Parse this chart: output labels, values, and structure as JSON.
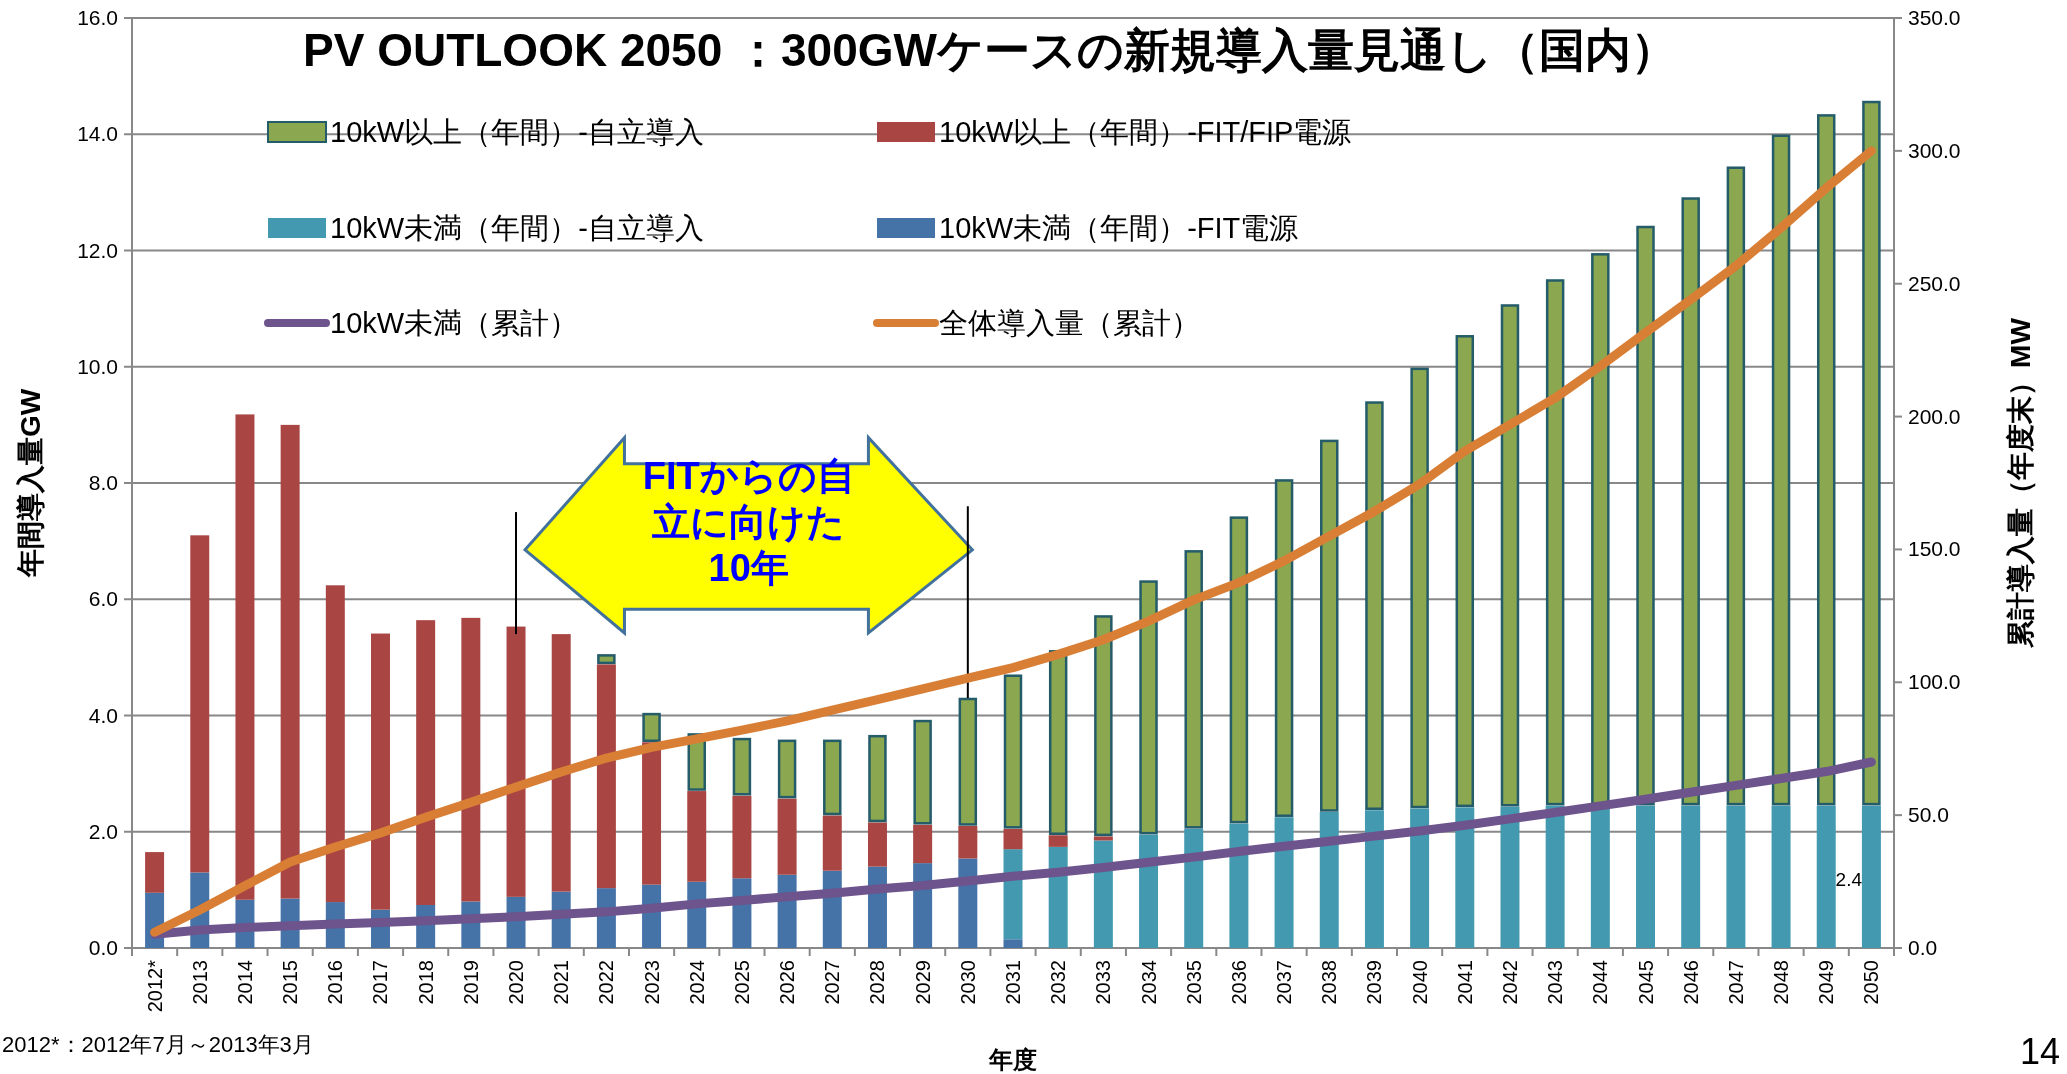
{
  "chart_data": {
    "type": "bar",
    "stacked": true,
    "title": "PV OUTLOOK 2050 ：300GWケースの新規導入量見通し（国内）",
    "xlabel": "年度",
    "ylabel": "年間導入量GW",
    "y2label": "累計導入量（年度末）MW",
    "categories": [
      "2012*",
      "2013",
      "2014",
      "2015",
      "2016",
      "2017",
      "2018",
      "2019",
      "2020",
      "2021",
      "2022",
      "2023",
      "2024",
      "2025",
      "2026",
      "2027",
      "2028",
      "2029",
      "2030",
      "2031",
      "2032",
      "2033",
      "2034",
      "2035",
      "2036",
      "2037",
      "2038",
      "2039",
      "2040",
      "2041",
      "2042",
      "2043",
      "2044",
      "2045",
      "2046",
      "2047",
      "2048",
      "2049",
      "2050"
    ],
    "series": [
      {
        "name": "10kW未満（年間）-FIT電源",
        "color": "#4572a7",
        "values": [
          0.95,
          1.3,
          0.83,
          0.85,
          0.79,
          0.66,
          0.74,
          0.8,
          0.88,
          0.97,
          1.03,
          1.09,
          1.14,
          1.2,
          1.26,
          1.33,
          1.4,
          1.46,
          1.54,
          0.15,
          null,
          null,
          null,
          null,
          null,
          null,
          null,
          null,
          null,
          null,
          null,
          null,
          null,
          null,
          null,
          null,
          null,
          null,
          null
        ]
      },
      {
        "name": "10kW未満（年間）-自立導入",
        "color": "#4299b0",
        "values": [
          null,
          null,
          null,
          null,
          null,
          null,
          null,
          null,
          null,
          null,
          null,
          null,
          null,
          null,
          null,
          null,
          null,
          null,
          null,
          1.55,
          1.74,
          1.85,
          1.95,
          2.05,
          2.14,
          2.25,
          2.34,
          2.37,
          2.4,
          2.42,
          2.43,
          2.45,
          2.45,
          2.45,
          2.45,
          2.45,
          2.45,
          2.45,
          2.45
        ]
      },
      {
        "name": "10kW以上（年間）-FIT/FIP電源",
        "color": "#a94543",
        "values": [
          0.7,
          5.8,
          8.35,
          8.15,
          5.45,
          4.75,
          4.9,
          4.88,
          4.65,
          4.43,
          3.85,
          2.45,
          1.56,
          1.42,
          1.31,
          0.95,
          0.76,
          0.66,
          0.56,
          0.35,
          0.2,
          0.07,
          null,
          null,
          null,
          null,
          null,
          null,
          null,
          null,
          null,
          null,
          null,
          null,
          null,
          null,
          null,
          null,
          null
        ]
      },
      {
        "name": "10kW以上（年間）-自立導入",
        "color": "#8ba74f",
        "values": [
          null,
          null,
          null,
          null,
          null,
          null,
          null,
          null,
          null,
          null,
          0.18,
          0.51,
          1.0,
          1.0,
          1.02,
          1.31,
          1.51,
          1.81,
          2.21,
          2.66,
          3.19,
          3.81,
          4.38,
          4.8,
          5.29,
          5.82,
          6.41,
          7.04,
          7.59,
          8.13,
          8.65,
          9.06,
          9.51,
          9.98,
          10.47,
          11.0,
          11.55,
          11.9,
          12.13
        ]
      },
      {
        "name": "10kW未満（累計）",
        "type": "line",
        "axis": "y2",
        "color": "#6e548d",
        "values": [
          5.2,
          6.8,
          7.7,
          8.4,
          9.0,
          9.6,
          10.3,
          11.0,
          11.8,
          12.7,
          13.6,
          15.0,
          16.6,
          17.9,
          19.3,
          20.6,
          22.2,
          23.5,
          25.2,
          27.0,
          28.5,
          30.3,
          32.3,
          34.2,
          36.3,
          38.3,
          40.2,
          42.1,
          44.0,
          46.2,
          48.6,
          51.0,
          53.5,
          56.0,
          58.6,
          61.2,
          63.8,
          66.4,
          70.0
        ]
      },
      {
        "name": "全体導入量（累計）",
        "type": "line",
        "axis": "y2",
        "color": "#d97f35",
        "values": [
          5.9,
          14.3,
          23.4,
          32.4,
          38.0,
          43.3,
          49.2,
          54.8,
          60.6,
          66.2,
          71.5,
          75.5,
          78.7,
          82.0,
          85.5,
          89.5,
          93.5,
          97.5,
          101.6,
          105.5,
          110.5,
          116.0,
          123.0,
          131.0,
          137.5,
          145.7,
          155.0,
          164.3,
          174.6,
          187.0,
          197.0,
          207.0,
          219.0,
          231.6,
          244.0,
          256.7,
          271.0,
          286.0,
          300.0
        ]
      }
    ],
    "ylim": [
      0,
      16
    ],
    "yticks": [
      {
        "value": 0,
        "label": "0.0"
      },
      {
        "value": 2,
        "label": "2.0"
      },
      {
        "value": 4,
        "label": "4.0"
      },
      {
        "value": 6,
        "label": "6.0"
      },
      {
        "value": 8,
        "label": "8.0"
      },
      {
        "value": 10,
        "label": "10.0"
      },
      {
        "value": 12,
        "label": "12.0"
      },
      {
        "value": 14,
        "label": "14.0"
      },
      {
        "value": 16,
        "label": "16.0"
      }
    ],
    "y2lim": [
      0,
      350
    ],
    "y2ticks": [
      {
        "value": 0,
        "label": "0.0"
      },
      {
        "value": 50,
        "label": "50.0"
      },
      {
        "value": 100,
        "label": "100.0"
      },
      {
        "value": 150,
        "label": "150.0"
      },
      {
        "value": 200,
        "label": "200.0"
      },
      {
        "value": 250,
        "label": "250.0"
      },
      {
        "value": 300,
        "label": "300.0"
      },
      {
        "value": 350,
        "label": "350.0"
      }
    ],
    "grid": "y",
    "legend": "top left",
    "annotations": [
      "FITからの自",
      "立に向けた",
      "10年",
      "2.4",
      "2012*：2012年7月～2013年3月",
      "14"
    ]
  }
}
